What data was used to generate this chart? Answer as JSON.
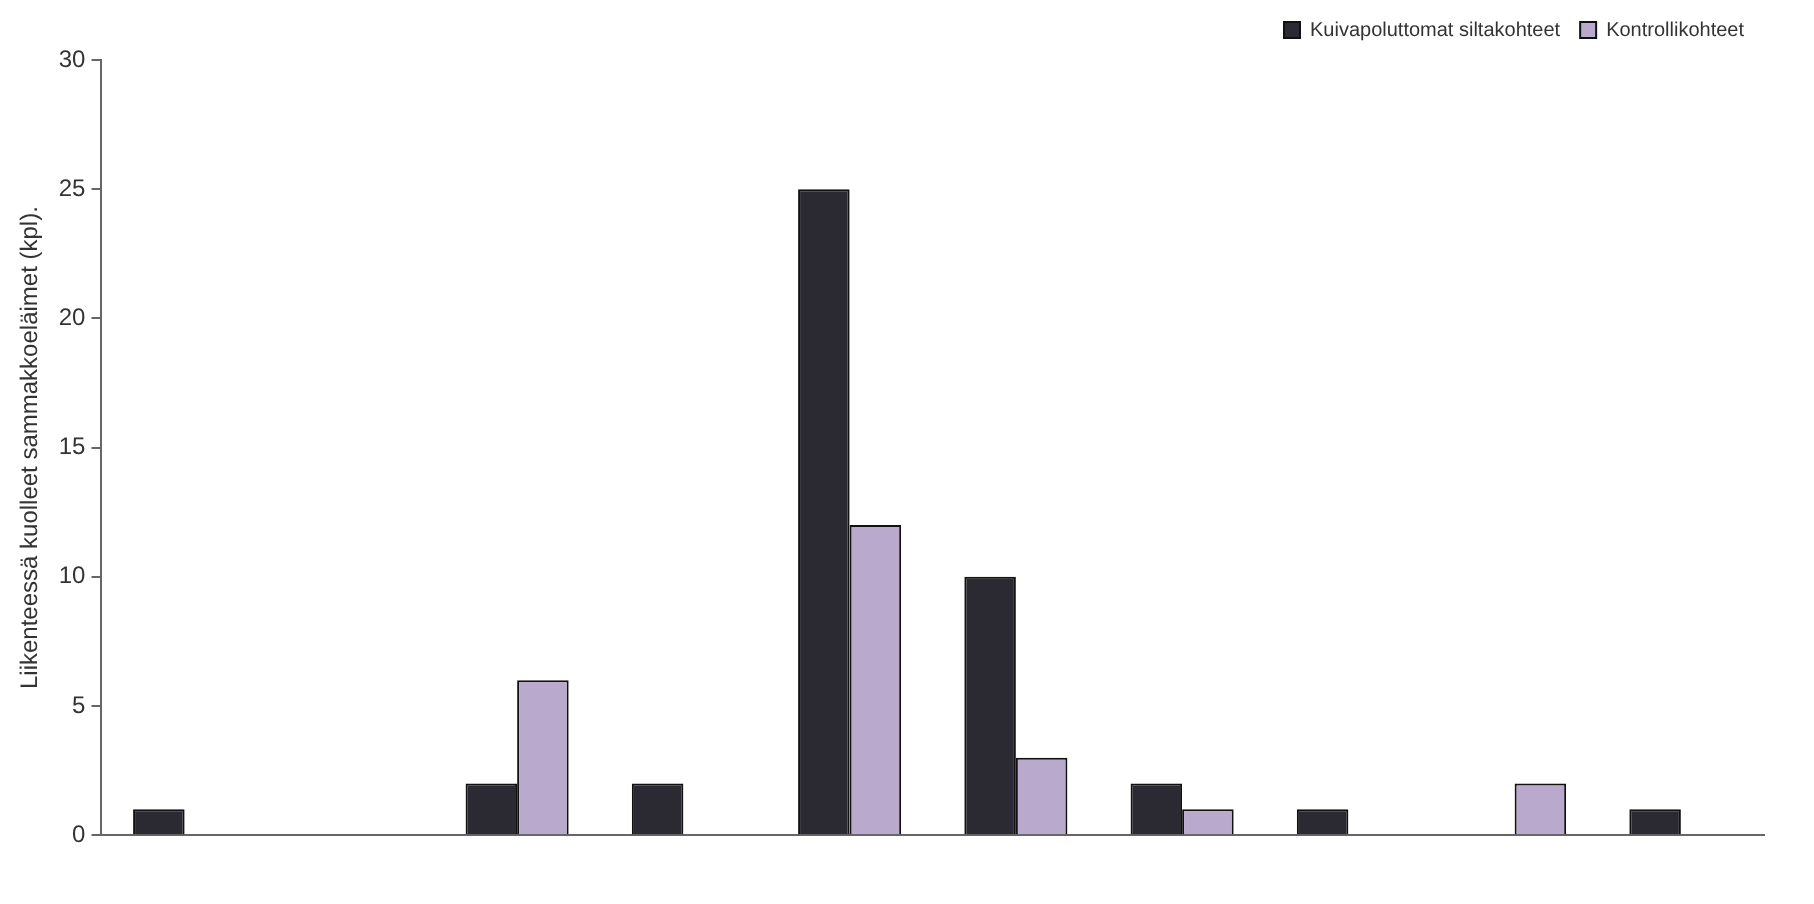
{
  "chart_data": {
    "type": "bar",
    "ylabel": "Liikenteessä kuolleet sammakkoeläimet (kpl).",
    "categories": [
      null,
      null,
      null,
      null,
      null,
      null,
      null,
      null,
      null,
      null
    ],
    "series": [
      {
        "name": "Kuivapoluttomat siltakohteet",
        "color": "#2b2a33",
        "values": [
          1,
          0,
          2,
          2,
          25,
          10,
          2,
          1,
          0,
          1
        ]
      },
      {
        "name": "Kontrollikohteet",
        "color": "#b9a9cc",
        "values": [
          0,
          0,
          6,
          0,
          12,
          3,
          1,
          0,
          2,
          0
        ]
      }
    ],
    "ylim": [
      0,
      30
    ],
    "yticks": [
      0,
      5,
      10,
      15,
      20,
      25,
      30
    ],
    "grid": false,
    "legend": "top right"
  }
}
